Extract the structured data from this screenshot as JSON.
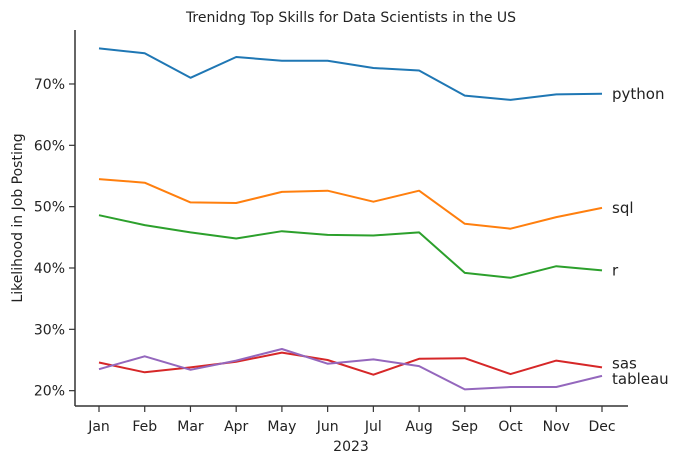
{
  "chart_data": {
    "type": "line",
    "title": "Trenidng Top Skills for Data Scientists in the US",
    "xlabel": "2023",
    "ylabel": "Likelihood in Job Posting",
    "categories": [
      "Jan",
      "Feb",
      "Mar",
      "Apr",
      "May",
      "Jun",
      "Jul",
      "Aug",
      "Sep",
      "Oct",
      "Nov",
      "Dec"
    ],
    "ylim": [
      17.5,
      78.8
    ],
    "yticks": [
      20,
      30,
      40,
      50,
      60,
      70
    ],
    "ytick_labels": [
      "20%",
      "30%",
      "40%",
      "50%",
      "60%",
      "70%"
    ],
    "grid": false,
    "legend": "inline-labels-right",
    "series": [
      {
        "name": "python",
        "color": "#1f77b4",
        "values": [
          75.8,
          75.0,
          71.0,
          74.4,
          73.8,
          73.8,
          72.6,
          72.2,
          68.1,
          67.4,
          68.3,
          68.4
        ]
      },
      {
        "name": "sql",
        "color": "#ff7f0e",
        "values": [
          54.5,
          53.9,
          50.7,
          50.6,
          52.4,
          52.6,
          50.8,
          52.6,
          47.2,
          46.4,
          48.3,
          49.8
        ]
      },
      {
        "name": "r",
        "color": "#2ca02c",
        "values": [
          48.6,
          47.0,
          45.8,
          44.8,
          46.0,
          45.4,
          45.3,
          45.8,
          39.2,
          38.4,
          40.3,
          39.6
        ]
      },
      {
        "name": "sas",
        "color": "#d62728",
        "values": [
          24.6,
          23.0,
          23.8,
          24.7,
          26.2,
          25.0,
          22.6,
          25.2,
          25.3,
          22.7,
          24.9,
          23.8
        ]
      },
      {
        "name": "tableau",
        "color": "#9467bd",
        "values": [
          23.5,
          25.6,
          23.4,
          24.9,
          26.8,
          24.4,
          25.1,
          24.0,
          20.2,
          20.6,
          20.6,
          22.4
        ]
      }
    ]
  }
}
